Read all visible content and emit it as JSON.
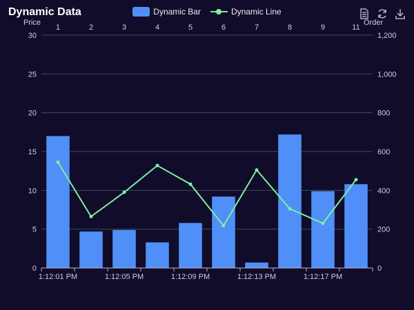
{
  "chart_data": {
    "type": "bar",
    "title": "Dynamic Data",
    "series": [
      {
        "name": "Dynamic Bar",
        "type": "bar",
        "color": "#4f8ff7",
        "y_axis": "left",
        "values": [
          17.0,
          4.7,
          4.9,
          3.3,
          5.8,
          9.2,
          0.7,
          17.2,
          9.9,
          10.8
        ]
      },
      {
        "name": "Dynamic Line",
        "type": "line",
        "color": "#7eeea7",
        "y_axis": "right",
        "values": [
          545,
          265,
          390,
          528,
          432,
          218,
          505,
          305,
          230,
          455
        ]
      }
    ],
    "x_bottom": {
      "labels": [
        "1:12:01 PM",
        "1:12:05 PM",
        "1:12:09 PM",
        "1:12:13 PM",
        "1:12:17 PM"
      ]
    },
    "x_top": {
      "labels": [
        "1",
        "2",
        "3",
        "4",
        "5",
        "6",
        "7",
        "8",
        "9",
        "11"
      ]
    },
    "y_left": {
      "name": "Price",
      "range": [
        0,
        30
      ],
      "ticks": [
        "0",
        "5",
        "10",
        "15",
        "20",
        "25",
        "30"
      ]
    },
    "y_right": {
      "name": "Order",
      "range": [
        0,
        1200
      ],
      "ticks": [
        "0",
        "200",
        "400",
        "600",
        "800",
        "1,000",
        "1,200"
      ]
    },
    "grid": true,
    "legend_position": "top-center"
  },
  "toolbox": [
    "data-view-icon",
    "refresh-icon",
    "download-icon"
  ]
}
